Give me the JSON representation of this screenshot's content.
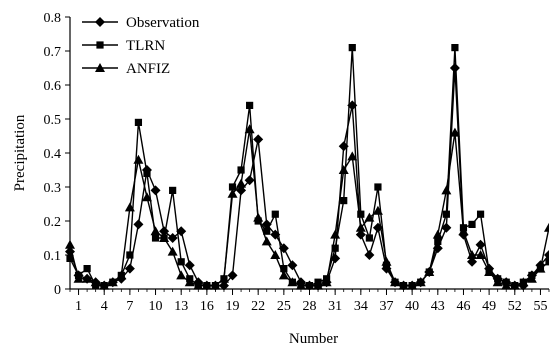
{
  "chart_data": {
    "type": "line",
    "xlabel": "Number",
    "ylabel": "Precipitation",
    "xlim": [
      0,
      56
    ],
    "ylim": [
      0,
      0.8
    ],
    "x_ticks": [
      1,
      4,
      7,
      10,
      13,
      16,
      19,
      22,
      25,
      28,
      31,
      34,
      37,
      40,
      43,
      46,
      49,
      52,
      55
    ],
    "y_ticks": [
      0,
      0.1,
      0.2,
      0.3,
      0.4,
      0.5,
      0.6,
      0.7,
      0.8
    ],
    "y_tick_labels": [
      "0",
      "0.1",
      "0.2",
      "0.3",
      "0.4",
      "0.5",
      "0.6",
      "0.7",
      "0.8"
    ],
    "legend_position": "top-left",
    "series": [
      {
        "name": "Observation",
        "marker": "diamond",
        "color": "#000000",
        "x": [
          0,
          1,
          2,
          3,
          4,
          5,
          6,
          7,
          8,
          9,
          10,
          11,
          12,
          13,
          14,
          15,
          16,
          17,
          18,
          19,
          20,
          21,
          22,
          23,
          24,
          25,
          26,
          27,
          28,
          29,
          30,
          31,
          32,
          33,
          34,
          35,
          36,
          37,
          38,
          39,
          40,
          41,
          42,
          43,
          44,
          45,
          46,
          47,
          48,
          49,
          50,
          51,
          52,
          53,
          54,
          55,
          56
        ],
        "values": [
          0.11,
          0.04,
          0.03,
          0.02,
          0.01,
          0.02,
          0.03,
          0.06,
          0.19,
          0.35,
          0.29,
          0.17,
          0.15,
          0.17,
          0.07,
          0.02,
          0.01,
          0.01,
          0.01,
          0.04,
          0.29,
          0.32,
          0.44,
          0.19,
          0.16,
          0.12,
          0.07,
          0.02,
          0.01,
          0.01,
          0.02,
          0.09,
          0.42,
          0.54,
          0.16,
          0.1,
          0.18,
          0.06,
          0.02,
          0.01,
          0.01,
          0.02,
          0.05,
          0.12,
          0.18,
          0.65,
          0.16,
          0.08,
          0.13,
          0.06,
          0.03,
          0.02,
          0.01,
          0.01,
          0.04,
          0.07,
          0.1
        ]
      },
      {
        "name": "TLRN",
        "marker": "square",
        "color": "#000000",
        "x": [
          0,
          1,
          2,
          3,
          4,
          5,
          6,
          7,
          8,
          9,
          10,
          11,
          12,
          13,
          14,
          15,
          16,
          17,
          18,
          19,
          20,
          21,
          22,
          23,
          24,
          25,
          26,
          27,
          28,
          29,
          30,
          31,
          32,
          33,
          34,
          35,
          36,
          37,
          38,
          39,
          40,
          41,
          42,
          43,
          44,
          45,
          46,
          47,
          48,
          49,
          50,
          51,
          52,
          53,
          54,
          55,
          56
        ],
        "values": [
          0.09,
          0.04,
          0.06,
          0.01,
          0.01,
          0.02,
          0.04,
          0.1,
          0.49,
          0.34,
          0.15,
          0.15,
          0.29,
          0.08,
          0.03,
          0.01,
          0.01,
          0.01,
          0.03,
          0.3,
          0.35,
          0.54,
          0.2,
          0.17,
          0.22,
          0.06,
          0.02,
          0.01,
          0.01,
          0.02,
          0.03,
          0.12,
          0.26,
          0.71,
          0.22,
          0.15,
          0.3,
          0.07,
          0.02,
          0.01,
          0.01,
          0.02,
          0.05,
          0.14,
          0.22,
          0.71,
          0.18,
          0.19,
          0.22,
          0.05,
          0.03,
          0.02,
          0.01,
          0.02,
          0.04,
          0.06,
          0.08
        ]
      },
      {
        "name": "ANFIZ",
        "marker": "triangle",
        "color": "#000000",
        "x": [
          0,
          1,
          2,
          3,
          4,
          5,
          6,
          7,
          8,
          9,
          10,
          11,
          12,
          13,
          14,
          15,
          16,
          17,
          18,
          19,
          20,
          21,
          22,
          23,
          24,
          25,
          26,
          27,
          28,
          29,
          30,
          31,
          32,
          33,
          34,
          35,
          36,
          37,
          38,
          39,
          40,
          41,
          42,
          43,
          44,
          45,
          46,
          47,
          48,
          49,
          50,
          51,
          52,
          53,
          54,
          55,
          56
        ],
        "values": [
          0.13,
          0.03,
          0.03,
          0.02,
          0.01,
          0.02,
          0.04,
          0.24,
          0.38,
          0.27,
          0.17,
          0.15,
          0.11,
          0.04,
          0.02,
          0.01,
          0.01,
          0.01,
          0.03,
          0.28,
          0.31,
          0.47,
          0.21,
          0.14,
          0.1,
          0.04,
          0.02,
          0.01,
          0.01,
          0.01,
          0.02,
          0.16,
          0.35,
          0.39,
          0.18,
          0.21,
          0.23,
          0.08,
          0.02,
          0.01,
          0.01,
          0.02,
          0.05,
          0.16,
          0.29,
          0.46,
          0.17,
          0.1,
          0.1,
          0.05,
          0.02,
          0.01,
          0.01,
          0.02,
          0.03,
          0.06,
          0.18
        ]
      }
    ]
  }
}
